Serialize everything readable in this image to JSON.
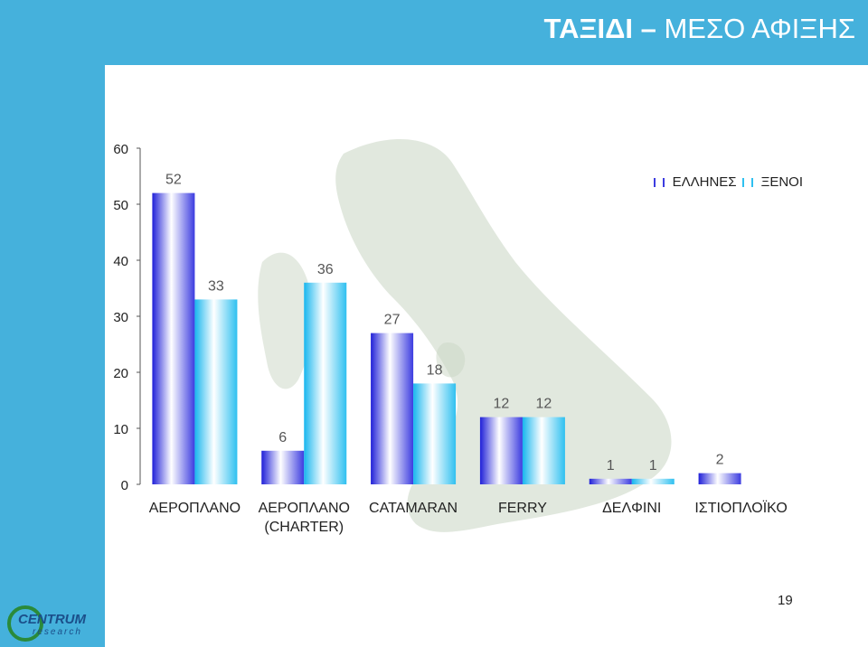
{
  "slide": {
    "title_main": "ΤΑΞΙΔΙ",
    "title_dash": " – ",
    "title_sub": "ΜΕΣΟ ΑΦΙΞΗΣ",
    "page_number": "19",
    "logo_text": "CENTRUM",
    "logo_subtext": "research"
  },
  "colors": {
    "band": "#45b1dc",
    "greek_bar": "#3c3ce0",
    "foreign_bar": "#2fc0f0"
  },
  "chart_data": {
    "type": "bar",
    "categories": [
      "ΑΕΡΟΠΛΑΝΟ",
      "ΑΕΡΟΠΛΑΝΟ (CHARTER)",
      "CATAMARAN",
      "FERRY",
      "ΔΕΛΦΙΝΙ",
      "ΙΣΤΙΟΠΛΟΪΚΟ"
    ],
    "series": [
      {
        "name": "ΕΛΛΗΝΕΣ",
        "values": [
          52,
          6,
          27,
          12,
          1,
          2
        ]
      },
      {
        "name": "ΞΕΝΟΙ",
        "values": [
          33,
          36,
          18,
          12,
          1,
          null
        ]
      }
    ],
    "data_labels": [
      [
        "52",
        "6",
        "27",
        "12",
        "1",
        "2"
      ],
      [
        "33",
        "36",
        "18",
        "12",
        "1",
        ""
      ]
    ],
    "ylim": [
      0,
      60
    ],
    "yticks": [
      0,
      10,
      20,
      30,
      40,
      50,
      60
    ],
    "legend_position": "top-right",
    "grid": false
  }
}
